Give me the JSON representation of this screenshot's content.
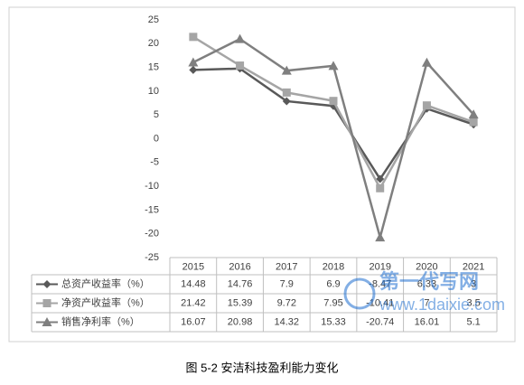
{
  "chart_data": {
    "type": "line",
    "caption": "图 5-2  安洁科技盈利能力变化",
    "categories": [
      "2015",
      "2016",
      "2017",
      "2018",
      "2019",
      "2020",
      "2021"
    ],
    "series": [
      {
        "name": "总资产收益率（%）",
        "color": "#595959",
        "marker": "diamond",
        "values": [
          14.48,
          14.76,
          7.9,
          6.9,
          -8.47,
          6.33,
          3
        ]
      },
      {
        "name": "净资产收益率（%）",
        "color": "#a5a5a5",
        "marker": "square",
        "values": [
          21.42,
          15.39,
          9.72,
          7.95,
          -10.41,
          7,
          3.5
        ]
      },
      {
        "name": "销售净利率（%）",
        "color": "#7f7f7f",
        "marker": "triangle",
        "values": [
          16.07,
          20.98,
          14.32,
          15.33,
          -20.74,
          16.01,
          5.1
        ]
      }
    ],
    "ylim": [
      -25,
      25
    ],
    "yticks": [
      -25,
      -20,
      -15,
      -10,
      -5,
      0,
      5,
      10,
      15,
      20,
      25
    ],
    "grid": false,
    "watermark": {
      "title": "第一代写网",
      "url": "www.1daixie.com"
    }
  }
}
